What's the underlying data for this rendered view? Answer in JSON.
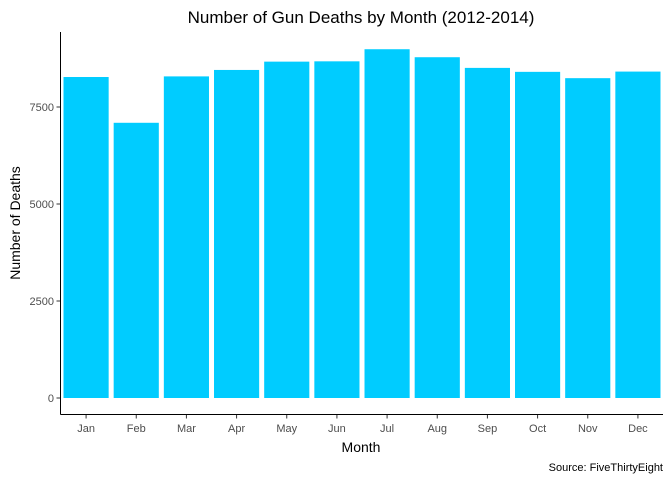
{
  "chart_data": {
    "type": "bar",
    "title": "Number of Gun Deaths by Month (2012-2014)",
    "xlabel": "Month",
    "ylabel": "Number of Deaths",
    "caption": "Source: FiveThirtyEight",
    "categories": [
      "Jan",
      "Feb",
      "Mar",
      "Apr",
      "May",
      "Jun",
      "Jul",
      "Aug",
      "Sep",
      "Oct",
      "Nov",
      "Dec"
    ],
    "values": [
      8273,
      7093,
      8289,
      8455,
      8669,
      8677,
      8989,
      8783,
      8508,
      8406,
      8243,
      8413
    ],
    "yticks": [
      0,
      2500,
      5000,
      7500
    ],
    "ylim": [
      0,
      9400
    ],
    "bar_color": "#00CCFF",
    "grid": false,
    "legend": "none"
  }
}
